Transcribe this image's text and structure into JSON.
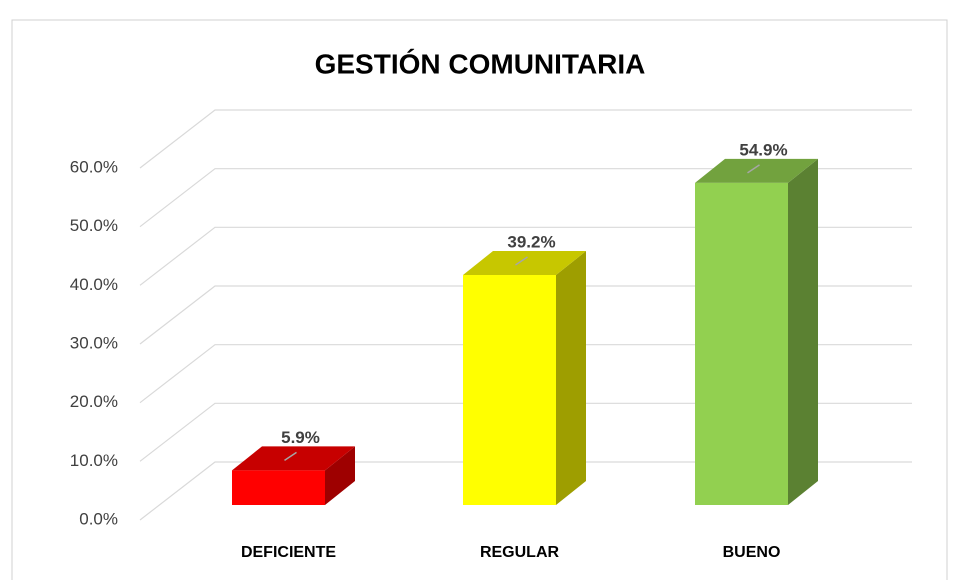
{
  "chart_data": {
    "type": "bar3d",
    "title": "GESTIÓN COMUNITARIA",
    "categories": [
      "DEFICIENTE",
      "REGULAR",
      "BUENO"
    ],
    "values": [
      5.9,
      39.2,
      54.9
    ],
    "value_labels": [
      "5.9%",
      "39.2%",
      "54.9%"
    ],
    "colors": [
      "#ff0000",
      "#ffff00",
      "#92d050"
    ],
    "ylim": [
      0,
      60
    ],
    "yticks": [
      {
        "value": 0,
        "label": "0.0%"
      },
      {
        "value": 10,
        "label": "10.0%"
      },
      {
        "value": 20,
        "label": "20.0%"
      },
      {
        "value": 30,
        "label": "30.0%"
      },
      {
        "value": 40,
        "label": "40.0%"
      },
      {
        "value": 50,
        "label": "50.0%"
      },
      {
        "value": 60,
        "label": "60.0%"
      }
    ],
    "grid": true
  }
}
